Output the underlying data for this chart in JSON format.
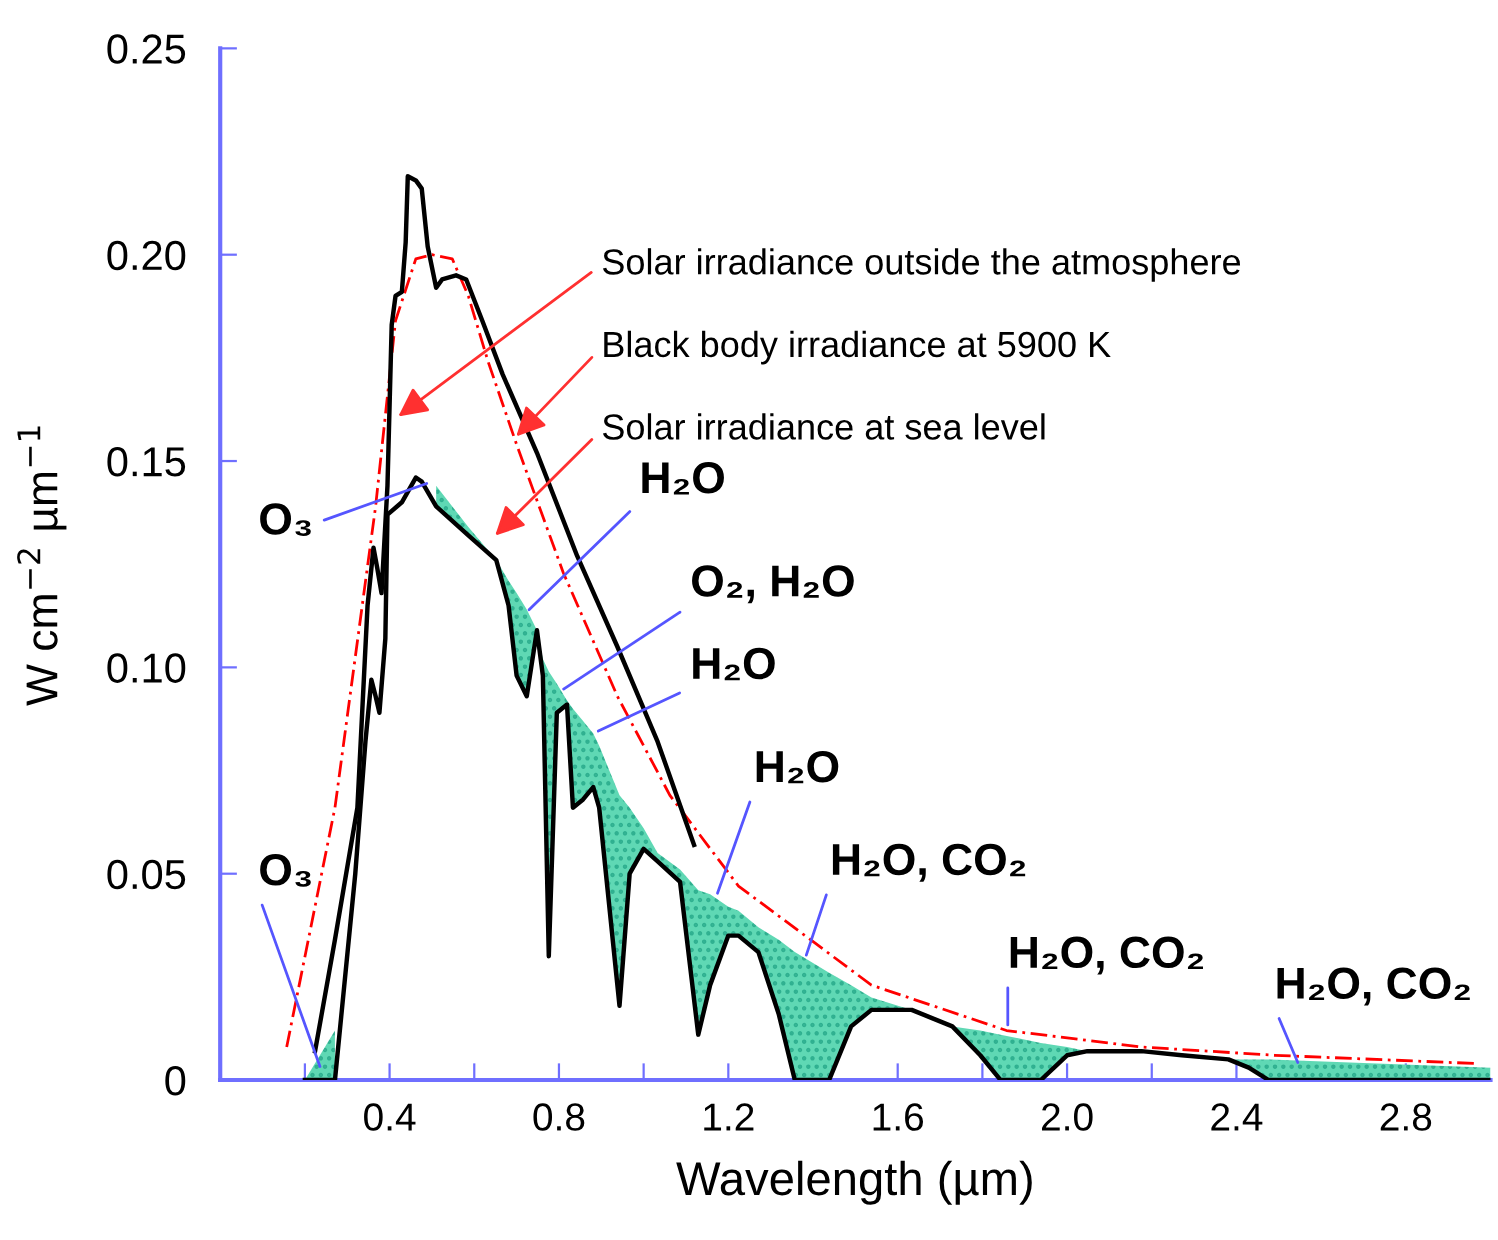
{
  "chart_data": {
    "type": "line",
    "xlabel": "Wavelength (µm)",
    "ylabel": "W cm$^{−2}$ µm$^{−1}$",
    "xlim": [
      0,
      3.0
    ],
    "ylim": [
      0,
      0.25
    ],
    "xticks": [
      {
        "value": 0.2,
        "label": null
      },
      0.4,
      {
        "value": 0.6,
        "label": null
      },
      0.8,
      {
        "value": 1.0,
        "label": null
      },
      1.2,
      {
        "value": 1.4,
        "label": null
      },
      1.6,
      {
        "value": 1.8,
        "label": null
      },
      {
        "value": 2.0,
        "label": "2.0"
      },
      {
        "value": 2.2,
        "label": null
      },
      2.4,
      {
        "value": 2.6,
        "label": null
      },
      2.8
    ],
    "yticks": [
      0,
      0.05,
      {
        "value": 0.1,
        "label": "0.10"
      },
      0.15,
      {
        "value": 0.2,
        "label": "0.20"
      },
      0.25
    ],
    "grid": false,
    "marker": "none",
    "series": [
      {
        "color": "#ff0000",
        "line_style": "dashed",
        "x": [
          0.157,
          0.271,
          0.367,
          0.414,
          0.462,
          0.5,
          0.548,
          0.586,
          0.633,
          0.7,
          0.81,
          0.938,
          1.062,
          1.224,
          1.381,
          1.538,
          1.857,
          2.176,
          2.49,
          2.967
        ],
        "values": [
          0.008,
          0.066,
          0.139,
          0.184,
          0.199,
          0.2,
          0.199,
          0.19,
          0.174,
          0.154,
          0.123,
          0.093,
          0.069,
          0.047,
          0.035,
          0.023,
          0.012,
          0.008,
          0.006,
          0.004
        ]
      },
      {
        "color": "#000000",
        "line_style": "solid",
        "x": [
          0.224,
          0.271,
          0.324,
          0.348,
          0.362,
          0.371,
          0.381,
          0.395,
          0.405,
          0.414,
          0.429,
          0.438,
          0.443,
          0.462,
          0.476,
          0.49,
          0.51,
          0.524,
          0.557,
          0.581,
          0.619,
          0.667,
          0.748,
          0.843,
          0.938,
          1.033,
          1.119
        ],
        "values": [
          0.007,
          0.034,
          0.066,
          0.115,
          0.129,
          0.124,
          0.118,
          0.144,
          0.183,
          0.19,
          0.191,
          0.203,
          0.219,
          0.218,
          0.216,
          0.202,
          0.192,
          0.194,
          0.195,
          0.194,
          0.184,
          0.171,
          0.152,
          0.127,
          0.105,
          0.082,
          0.057
        ]
      },
      {
        "color": "#000000",
        "line_style": "solid",
        "x": [
          0.2,
          0.271,
          0.319,
          0.343,
          0.357,
          0.367,
          0.376,
          0.39,
          0.395,
          0.429,
          0.462,
          0.476,
          0.51,
          0.586,
          0.652,
          0.681,
          0.7,
          0.724,
          0.748,
          0.762,
          0.776,
          0.795,
          0.819,
          0.833,
          0.857,
          0.881,
          0.895,
          0.943,
          0.967,
          1.0,
          1.033,
          1.086,
          1.129,
          1.157,
          1.2,
          1.224,
          1.271,
          1.319,
          1.357,
          1.438,
          1.49,
          1.538,
          1.633,
          1.681,
          1.729,
          1.795,
          1.843,
          1.938,
          2.0,
          2.048,
          2.176,
          2.271,
          2.381,
          2.429,
          2.476,
          3.0
        ],
        "values": [
          0,
          0,
          0.05,
          0.082,
          0.097,
          0.093,
          0.089,
          0.107,
          0.137,
          0.14,
          0.146,
          0.145,
          0.139,
          0.132,
          0.126,
          0.115,
          0.098,
          0.093,
          0.109,
          0.098,
          0.03,
          0.089,
          0.091,
          0.066,
          0.068,
          0.071,
          0.066,
          0.018,
          0.05,
          0.056,
          0.053,
          0.048,
          0.011,
          0.023,
          0.035,
          0.035,
          0.031,
          0.016,
          0,
          0,
          0.013,
          0.017,
          0.017,
          0.015,
          0.013,
          0.006,
          0,
          0,
          0.006,
          0.007,
          0.007,
          0.006,
          0.005,
          0.003,
          0,
          0
        ],
        "lower": [
          0,
          0,
          null,
          null,
          null,
          null,
          null,
          null,
          null,
          null,
          null,
          null,
          0.139,
          0.132,
          0.126,
          0.115,
          0.098,
          0.093,
          0.109,
          0.098,
          0.03,
          0.089,
          0.091,
          0.066,
          0.068,
          0.071,
          0.066,
          0.018,
          0.05,
          0.056,
          0.053,
          0.048,
          0.011,
          0.023,
          0.035,
          0.035,
          0.031,
          0.016,
          0,
          0,
          0.013,
          0.017,
          0.017,
          0.015,
          0.013,
          0.006,
          0,
          0,
          0.006,
          0.007,
          0.007,
          0.006,
          0.005,
          0.003,
          0,
          0
        ],
        "upper": [
          0,
          0.012,
          null,
          null,
          null,
          null,
          null,
          null,
          null,
          null,
          null,
          null,
          0.144,
          0.134,
          0.126,
          0.121,
          0.118,
          0.114,
          0.109,
          0.102,
          0.099,
          0.096,
          0.092,
          0.09,
          0.087,
          0.084,
          0.081,
          0.069,
          0.066,
          0.061,
          0.055,
          0.051,
          0.046,
          0.045,
          0.042,
          0.041,
          0.037,
          0.034,
          0.031,
          0.026,
          0.023,
          0.02,
          0.017,
          0.015,
          0.013,
          0.012,
          0.011,
          0.009,
          0.008,
          0.007,
          0.007,
          0.006,
          0.005,
          0.005,
          0.005,
          0.003
        ]
      }
    ],
    "annotations": [
      {
        "text": "Solar irradiance outside the atmosphere",
        "x": 0.41,
        "y": 0.16
      },
      {
        "text": "Black body irradiance at 5900 K",
        "x": 0.69,
        "y": 0.155
      },
      {
        "text": "Solar irradiance at sea level",
        "x": 0.64,
        "y": 0.131
      },
      {
        "text": "O₃",
        "x": 0.5,
        "y": 0.145
      },
      {
        "text": "H₂O",
        "x": 0.72,
        "y": 0.113
      },
      {
        "text": "O₂, H₂O",
        "x": 0.8,
        "y": 0.094
      },
      {
        "text": "H₂O",
        "x": 0.881,
        "y": 0.084
      },
      {
        "text": "H₂O",
        "x": 1.17,
        "y": 0.044
      },
      {
        "text": "H₂O, CO₂",
        "x": 1.38,
        "y": 0.029
      },
      {
        "text": "H₂O, CO₂",
        "x": 1.86,
        "y": 0.012
      },
      {
        "text": "H₂O, CO₂",
        "x": 2.55,
        "y": 0.003
      },
      {
        "text": "O₃",
        "x": 0.24,
        "y": 0.002
      }
    ]
  }
}
